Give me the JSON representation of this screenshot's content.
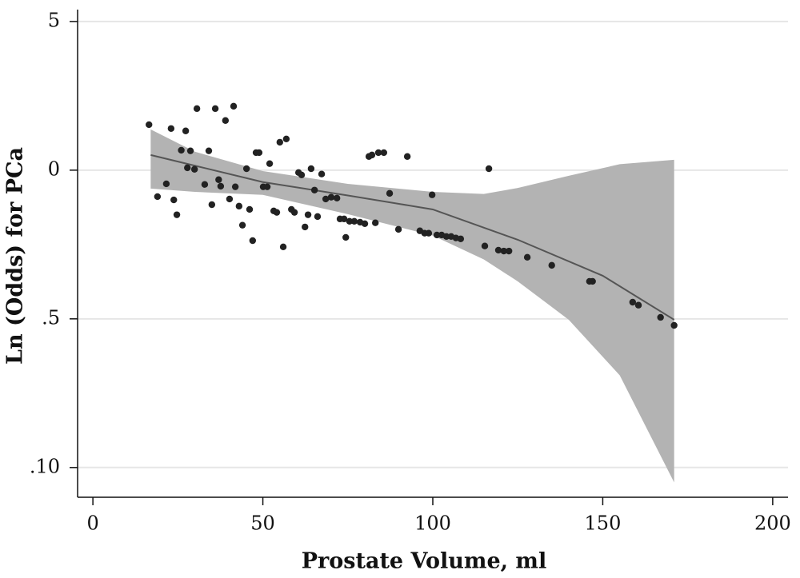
{
  "chart_data": {
    "type": "scatter",
    "x_label": "Prostate Volume, ml",
    "y_label": "Ln (Odds) for PCa",
    "xlim": [
      -4.5,
      204.5
    ],
    "ylim": [
      -11,
      5.4
    ],
    "xticks": [
      0,
      50,
      100,
      150,
      200
    ],
    "yticks": [
      5,
      0,
      {
        "value": -5,
        "label": ".5"
      },
      {
        "value": -10,
        "label": ".10"
      }
    ],
    "grid": true,
    "point_color": "#222222",
    "line_color": "#555555",
    "band_color": "#b3b3b3",
    "points": {
      "x": [
        16.5,
        19,
        21.6,
        23,
        23.8,
        24.7,
        26,
        27.3,
        27.8,
        28.7,
        29.9,
        30.6,
        32.9,
        34.1,
        35,
        36,
        37,
        37.6,
        39,
        40.2,
        41.4,
        41.9,
        43,
        44,
        45.2,
        46.1,
        47,
        48,
        48.9,
        50.1,
        51.3,
        52,
        53.2,
        54.1,
        55,
        56,
        56.9,
        58.4,
        59.3,
        60.5,
        61.4,
        62.4,
        63.3,
        64.2,
        65.2,
        66.1,
        67.3,
        68.5,
        70.1,
        71.8,
        72.7,
        73.9,
        74.4,
        75.5,
        76.9,
        78.6,
        80,
        81.2,
        82.1,
        83.1,
        84,
        85.6,
        87.3,
        89.9,
        92.5,
        96.2,
        97.6,
        98.8,
        99.8,
        101.2,
        102.6,
        104,
        105.4,
        106.8,
        108.2,
        115.3,
        116.5,
        119.3,
        120.9,
        122.4,
        127.8,
        135,
        146.1,
        147,
        158.8,
        160.5,
        167,
        171
      ],
      "y": [
        1.53,
        -0.89,
        -0.46,
        1.4,
        -1.0,
        -1.5,
        0.67,
        1.32,
        0.08,
        0.65,
        0.03,
        2.07,
        -0.48,
        0.65,
        -1.16,
        2.07,
        -0.32,
        -0.54,
        1.67,
        -0.97,
        2.15,
        -0.56,
        -1.21,
        -1.85,
        0.05,
        -1.32,
        -2.37,
        0.59,
        0.59,
        -0.56,
        -0.56,
        0.22,
        -1.37,
        -1.42,
        0.94,
        -2.58,
        1.05,
        -1.32,
        -1.42,
        -0.08,
        -0.16,
        -1.91,
        -1.5,
        0.05,
        -0.67,
        -1.56,
        -0.13,
        -0.97,
        -0.91,
        -0.94,
        -1.64,
        -1.64,
        -2.26,
        -1.72,
        -1.72,
        -1.75,
        -1.8,
        0.46,
        0.51,
        -1.77,
        0.59,
        0.59,
        -0.78,
        -1.99,
        0.46,
        -2.04,
        -2.12,
        -2.12,
        -0.83,
        -2.18,
        -2.18,
        -2.23,
        -2.23,
        -2.28,
        -2.31,
        -2.55,
        0.05,
        -2.69,
        -2.72,
        -2.72,
        -2.93,
        -3.2,
        -3.74,
        -3.74,
        -4.44,
        -4.54,
        -4.95,
        -5.22
      ]
    },
    "fit": {
      "x": [
        17,
        30,
        50,
        75,
        100,
        125,
        150,
        171
      ],
      "values": [
        0.51,
        0.15,
        -0.4,
        -0.85,
        -1.32,
        -2.34,
        -3.55,
        -5.03
      ]
    },
    "band": {
      "x": [
        17,
        30,
        50,
        75,
        100,
        115,
        125,
        140,
        155,
        171
      ],
      "upper": [
        1.37,
        0.62,
        -0.03,
        -0.46,
        -0.73,
        -0.8,
        -0.6,
        -0.19,
        0.2,
        0.35
      ],
      "lower": [
        -0.62,
        -0.73,
        -0.83,
        -1.48,
        -2.2,
        -3.0,
        -3.74,
        -5.03,
        -6.9,
        -10.5
      ]
    }
  }
}
